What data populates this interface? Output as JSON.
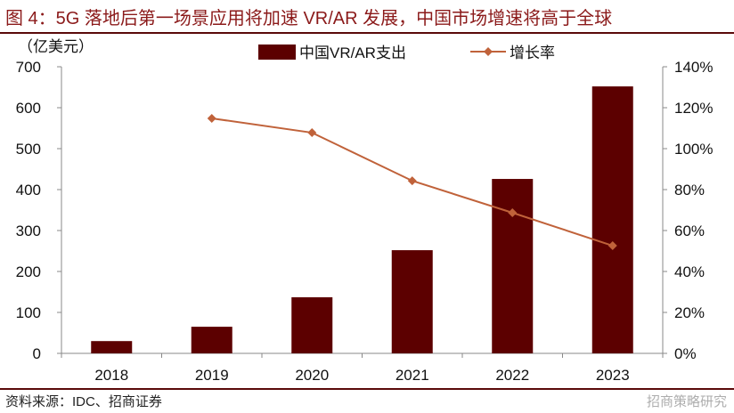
{
  "header": {
    "title": "图 4：5G 落地后第一场景应用将加速 VR/AR 发展，中国市场增速将高于全球"
  },
  "footer": {
    "source": "资料来源：IDC、招商证券",
    "watermark": "招商策略研究"
  },
  "colors": {
    "bar": "#5c0000",
    "line": "#c0623a",
    "title": "#8b1a1a"
  },
  "chart_data": {
    "type": "bar+line",
    "categories": [
      "2018",
      "2019",
      "2020",
      "2021",
      "2022",
      "2023"
    ],
    "ylabel": "（亿美元）",
    "ylim": [
      0,
      700
    ],
    "yticks": [
      "0",
      "100",
      "200",
      "300",
      "400",
      "500",
      "600",
      "700"
    ],
    "y2lim": [
      0,
      140
    ],
    "y2ticks": [
      "0%",
      "20%",
      "40%",
      "60%",
      "80%",
      "100%",
      "120%",
      "140%"
    ],
    "legend_placement": "top",
    "series": [
      {
        "name": "中国VR/AR支出",
        "type": "bar",
        "axis": "left",
        "values": [
          30,
          65,
          137,
          252,
          426,
          652
        ]
      },
      {
        "name": "增长率",
        "type": "line",
        "axis": "right",
        "values": [
          null,
          114.8,
          107.8,
          84.3,
          68.7,
          52.6
        ]
      }
    ]
  }
}
